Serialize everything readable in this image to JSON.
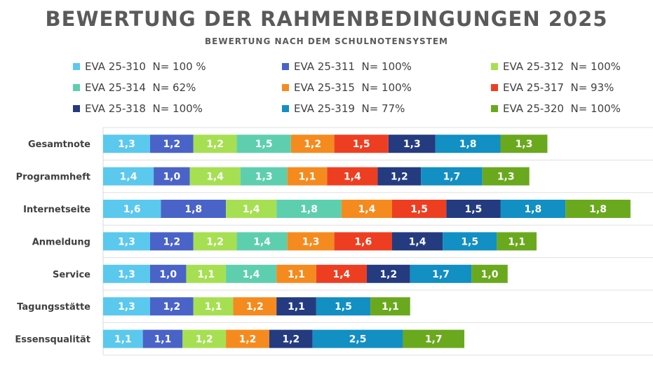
{
  "title": "BEWERTUNG DER RAHMENBEDINGUNGEN 2025",
  "subtitle": "BEWERTUNG NACH DEM SCHULNOTENSYSTEM",
  "chart_data": {
    "type": "bar",
    "orientation": "horizontal",
    "stacked": true,
    "grid": false,
    "legend_position": "top",
    "categories": [
      "Gesamtnote",
      "Programmheft",
      "Internetseite",
      "Anmeldung",
      "Service ",
      "Tagungsstätte",
      "Essensqualität"
    ],
    "series": [
      {
        "name": "EVA 25-310",
        "label": "EVA 25-310  N= 100 %",
        "color": "#5bc8ee",
        "values": [
          1.3,
          1.4,
          1.6,
          1.3,
          1.3,
          1.3,
          1.1
        ],
        "labels": [
          "1,3",
          "1,4",
          "1,6",
          "1,3",
          "1,3",
          "1,3",
          "1,1"
        ]
      },
      {
        "name": "EVA 25-311",
        "label": "EVA 25-311  N= 100%",
        "color": "#4a63c8",
        "values": [
          1.2,
          1.0,
          1.8,
          1.2,
          1.0,
          1.2,
          1.1
        ],
        "labels": [
          "1,2",
          "1,0",
          "1,8",
          "1,2",
          "1,0",
          "1,2",
          "1,1"
        ]
      },
      {
        "name": "EVA 25-312",
        "label": "EVA 25-312  N= 100%",
        "color": "#a6e052",
        "values": [
          1.2,
          1.4,
          1.4,
          1.2,
          1.1,
          1.1,
          1.2
        ],
        "labels": [
          "1,2",
          "1,4",
          "1,4",
          "1,2",
          "1,1",
          "1,1",
          "1,2"
        ]
      },
      {
        "name": "EVA 25-314",
        "label": "EVA 25-314  N= 62%",
        "color": "#5ecfae",
        "values": [
          1.5,
          1.3,
          1.8,
          1.4,
          1.4,
          null,
          null
        ],
        "labels": [
          "1,5",
          "1,3",
          "1,8",
          "1,4",
          "1,4",
          "",
          ""
        ]
      },
      {
        "name": "EVA 25-315",
        "label": "EVA 25-315  N= 100%",
        "color": "#f58b1f",
        "values": [
          1.2,
          1.1,
          1.4,
          1.3,
          1.1,
          1.2,
          1.2
        ],
        "labels": [
          "1,2",
          "1,1",
          "1,4",
          "1,3",
          "1,1",
          "1,2",
          "1,2"
        ]
      },
      {
        "name": "EVA 25-317",
        "label": "EVA 25-317  N= 93%",
        "color": "#ee3e22",
        "values": [
          1.5,
          1.4,
          1.5,
          1.6,
          1.4,
          null,
          null
        ],
        "labels": [
          "1,5",
          "1,4",
          "1,5",
          "1,6",
          "1,4",
          "",
          ""
        ]
      },
      {
        "name": "EVA 25-318",
        "label": "EVA 25-318  N= 100%",
        "color": "#243b80",
        "values": [
          1.3,
          1.2,
          1.5,
          1.4,
          1.2,
          1.1,
          1.2
        ],
        "labels": [
          "1,3",
          "1,2",
          "1,5",
          "1,4",
          "1,2",
          "1,1",
          "1,2"
        ]
      },
      {
        "name": "EVA 25-319",
        "label": "EVA 25-319  N= 77%",
        "color": "#128fc3",
        "values": [
          1.8,
          1.7,
          1.8,
          1.5,
          1.7,
          1.5,
          2.5
        ],
        "labels": [
          "1,8",
          "1,7",
          "1,8",
          "1,5",
          "1,7",
          "1,5",
          "2,5"
        ]
      },
      {
        "name": "EVA 25-320",
        "label": "EVA 25-320  N= 100%",
        "color": "#6aa91e",
        "values": [
          1.3,
          1.3,
          1.8,
          1.1,
          1.0,
          1.1,
          1.7
        ],
        "labels": [
          "1,3",
          "1,3",
          "1,8",
          "1,1",
          "1,0",
          "1,1",
          "1,7"
        ]
      }
    ]
  }
}
